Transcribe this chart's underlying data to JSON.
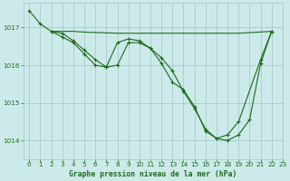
{
  "title": "Graphe pression niveau de la mer (hPa)",
  "bg_color": "#cdeaea",
  "grid_color": "#aacccc",
  "line_color": "#1a6b1a",
  "xlim": [
    -0.5,
    23
  ],
  "ylim": [
    1013.5,
    1017.65
  ],
  "yticks": [
    1014,
    1015,
    1016,
    1017
  ],
  "xticks": [
    0,
    1,
    2,
    3,
    4,
    5,
    6,
    7,
    8,
    9,
    10,
    11,
    12,
    13,
    14,
    15,
    16,
    17,
    18,
    19,
    20,
    21,
    22,
    23
  ],
  "line1_x": [
    0,
    1,
    2,
    3,
    4,
    5,
    6,
    7,
    8,
    9,
    10,
    11,
    12,
    13,
    14,
    15,
    16,
    17,
    18,
    19,
    21,
    22
  ],
  "line1_y": [
    1017.45,
    1017.1,
    1016.9,
    1016.85,
    1016.65,
    1016.4,
    1016.15,
    1015.95,
    1016.6,
    1016.7,
    1016.65,
    1016.45,
    1016.05,
    1015.55,
    1015.35,
    1014.9,
    1014.25,
    1014.05,
    1014.15,
    1014.5,
    1016.15,
    1016.9
  ],
  "line2_x": [
    2,
    3,
    4,
    5,
    6,
    7,
    8,
    9,
    10,
    11,
    12,
    13,
    14,
    15,
    16,
    17,
    18,
    19,
    22
  ],
  "line2_y": [
    1016.9,
    1016.9,
    1016.9,
    1016.88,
    1016.87,
    1016.86,
    1016.85,
    1016.85,
    1016.85,
    1016.85,
    1016.85,
    1016.85,
    1016.85,
    1016.85,
    1016.85,
    1016.85,
    1016.85,
    1016.85,
    1016.9
  ],
  "line3_x": [
    2,
    3,
    4,
    5,
    6,
    7,
    8,
    9,
    10,
    11,
    12,
    13,
    14,
    15,
    16,
    17,
    18,
    19,
    20,
    21,
    22
  ],
  "line3_y": [
    1016.9,
    1016.75,
    1016.6,
    1016.3,
    1016.0,
    1015.95,
    1016.0,
    1016.6,
    1016.6,
    1016.45,
    1016.2,
    1015.85,
    1015.3,
    1014.85,
    1014.3,
    1014.05,
    1014.0,
    1014.15,
    1014.55,
    1016.05,
    1016.9
  ]
}
